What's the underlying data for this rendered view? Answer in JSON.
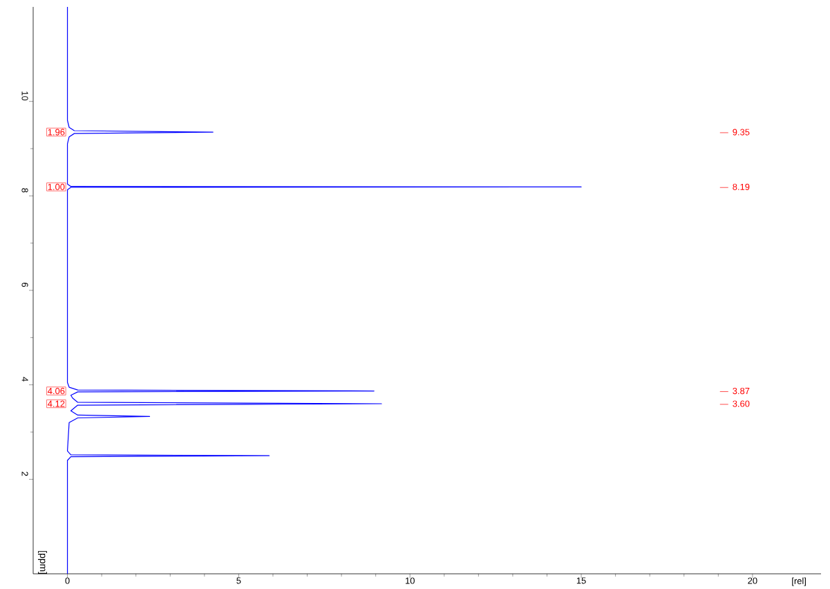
{
  "chart_data": {
    "type": "line",
    "xlabel": "[rel]",
    "ylabel": "[ppm]",
    "xlim": [
      -1,
      22
    ],
    "ylim": [
      0,
      12
    ],
    "xticks": [
      0,
      5,
      10,
      15,
      20
    ],
    "yticks": [
      2,
      4,
      6,
      8,
      10
    ],
    "series": [
      {
        "color": "#0000ff",
        "x": [
          0,
          0,
          0.05,
          0.2,
          4.25,
          0.2,
          0.05,
          0,
          0,
          0.1,
          15,
          0.1,
          0,
          0,
          0.05,
          0.3,
          8.95,
          0.3,
          0.1,
          0.15,
          0.3,
          9.17,
          0.3,
          0.1,
          0.3,
          2.4,
          0.3,
          0.05,
          0,
          0.1,
          5.89,
          0.1,
          0,
          0
        ],
        "values": [
          12,
          9.6,
          9.45,
          9.38,
          9.35,
          9.32,
          9.25,
          9.1,
          8.25,
          8.2,
          8.19,
          8.18,
          8.13,
          4.05,
          3.95,
          3.89,
          3.87,
          3.85,
          3.78,
          3.72,
          3.63,
          3.6,
          3.57,
          3.45,
          3.36,
          3.33,
          3.3,
          3.2,
          2.6,
          2.52,
          2.5,
          2.48,
          2.4,
          0
        ]
      }
    ],
    "annotations": [
      "1.96",
      "1.00",
      "4.06",
      "4.12",
      "9.35",
      "8.19",
      "3.87",
      "3.60"
    ]
  }
}
